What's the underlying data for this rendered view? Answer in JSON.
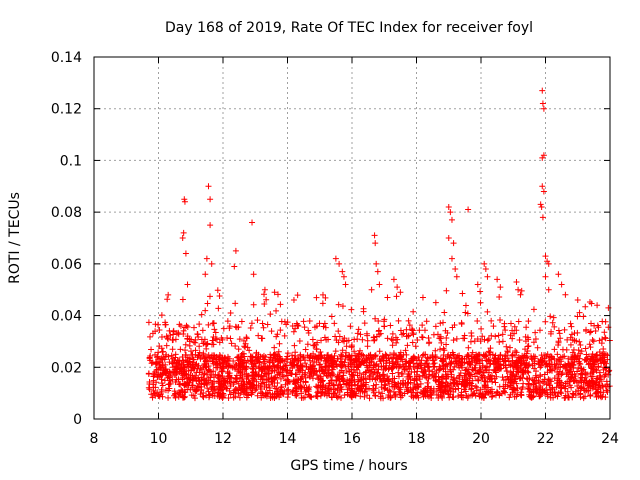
{
  "chart_data": {
    "type": "scatter",
    "title": "Day 168 of 2019, Rate Of TEC Index for receiver foyl",
    "xlabel": "GPS time / hours",
    "ylabel": "ROTI / TECUs",
    "xlim": [
      8,
      24
    ],
    "ylim": [
      0,
      0.14
    ],
    "xticks": [
      8,
      10,
      12,
      14,
      16,
      18,
      20,
      22,
      24
    ],
    "yticks": [
      0,
      0.02,
      0.04,
      0.06,
      0.08,
      0.1,
      0.12,
      0.14
    ],
    "xtick_labels": [
      "8",
      "10",
      "12",
      "14",
      "16",
      "18",
      "20",
      "22",
      "24"
    ],
    "ytick_labels": [
      "0",
      "0.02",
      "0.04",
      "0.06",
      "0.08",
      "0.1",
      "0.12",
      "0.14"
    ],
    "grid": true,
    "marker": "+",
    "color": "#ff0000",
    "data_range_hours": [
      9.7,
      24.0
    ],
    "baseline_band": [
      0.008,
      0.025
    ],
    "density_note": "dense background cloud of several thousand points",
    "series": [
      {
        "name": "ROTI",
        "points": [
          [
            10.8,
            0.085
          ],
          [
            10.82,
            0.084
          ],
          [
            10.78,
            0.072
          ],
          [
            10.85,
            0.064
          ],
          [
            10.75,
            0.07
          ],
          [
            10.9,
            0.052
          ],
          [
            11.55,
            0.09
          ],
          [
            11.6,
            0.085
          ],
          [
            11.6,
            0.075
          ],
          [
            11.5,
            0.062
          ],
          [
            11.65,
            0.06
          ],
          [
            11.45,
            0.056
          ],
          [
            12.4,
            0.065
          ],
          [
            12.35,
            0.059
          ],
          [
            12.9,
            0.076
          ],
          [
            12.95,
            0.056
          ],
          [
            13.3,
            0.05
          ],
          [
            15.5,
            0.062
          ],
          [
            15.6,
            0.06
          ],
          [
            15.7,
            0.057
          ],
          [
            15.75,
            0.055
          ],
          [
            15.8,
            0.052
          ],
          [
            15.1,
            0.048
          ],
          [
            16.7,
            0.071
          ],
          [
            16.72,
            0.068
          ],
          [
            16.75,
            0.06
          ],
          [
            16.8,
            0.057
          ],
          [
            16.85,
            0.052
          ],
          [
            17.3,
            0.054
          ],
          [
            17.4,
            0.051
          ],
          [
            17.5,
            0.049
          ],
          [
            17.1,
            0.047
          ],
          [
            19.0,
            0.082
          ],
          [
            19.05,
            0.08
          ],
          [
            19.1,
            0.077
          ],
          [
            19.0,
            0.07
          ],
          [
            19.15,
            0.068
          ],
          [
            19.1,
            0.062
          ],
          [
            19.2,
            0.058
          ],
          [
            19.25,
            0.055
          ],
          [
            19.6,
            0.081
          ],
          [
            20.1,
            0.06
          ],
          [
            20.15,
            0.058
          ],
          [
            20.2,
            0.055
          ],
          [
            19.9,
            0.052
          ],
          [
            20.5,
            0.054
          ],
          [
            20.6,
            0.051
          ],
          [
            21.1,
            0.053
          ],
          [
            21.15,
            0.05
          ],
          [
            21.9,
            0.127
          ],
          [
            21.92,
            0.122
          ],
          [
            21.95,
            0.12
          ],
          [
            21.9,
            0.101
          ],
          [
            21.95,
            0.102
          ],
          [
            21.9,
            0.09
          ],
          [
            21.95,
            0.088
          ],
          [
            21.85,
            0.083
          ],
          [
            21.88,
            0.082
          ],
          [
            21.92,
            0.078
          ],
          [
            22.0,
            0.063
          ],
          [
            22.05,
            0.061
          ],
          [
            22.1,
            0.06
          ],
          [
            22.0,
            0.055
          ],
          [
            22.1,
            0.05
          ],
          [
            22.4,
            0.056
          ],
          [
            22.5,
            0.052
          ],
          [
            23.0,
            0.046
          ],
          [
            23.6,
            0.044
          ],
          [
            23.95,
            0.043
          ],
          [
            18.2,
            0.047
          ],
          [
            18.6,
            0.045
          ],
          [
            14.2,
            0.046
          ],
          [
            13.6,
            0.049
          ],
          [
            10.3,
            0.048
          ]
        ]
      }
    ]
  }
}
